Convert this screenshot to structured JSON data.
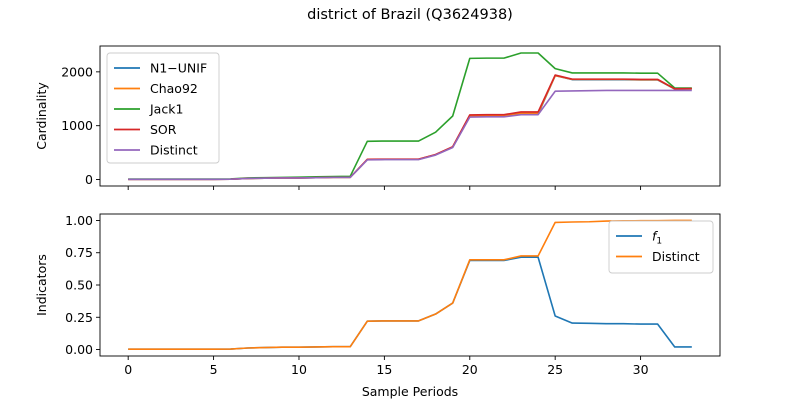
{
  "chart_data": {
    "type": "line",
    "title": "district of Brazil (Q3624938)",
    "xlabel": "Sample Periods",
    "x_ticks": [
      0,
      5,
      10,
      15,
      20,
      25,
      30
    ],
    "x_range": [
      -1.65,
      34.65
    ],
    "panels": [
      {
        "ylabel": "Cardinality",
        "ylim": [
          -120,
          2480
        ],
        "y_ticks": [
          0,
          1000,
          2000
        ],
        "show_x_tick_labels": false,
        "legend": "top-left",
        "series": [
          {
            "name": "N1−UNIF",
            "color": "#1f77b4",
            "x": [
              0,
              1,
              2,
              3,
              4,
              5,
              6,
              7,
              8,
              9,
              10,
              11,
              12,
              13,
              14,
              15,
              16,
              17,
              18,
              19,
              20,
              21,
              22,
              23,
              24,
              25,
              26,
              27,
              28,
              29,
              30,
              31,
              32,
              33
            ],
            "y": [
              5,
              5,
              5,
              5,
              5,
              5,
              6,
              20,
              25,
              30,
              30,
              35,
              40,
              40,
              370,
              375,
              375,
              375,
              460,
              600,
              1170,
              1175,
              1175,
              1215,
              1215,
              1930,
              1855,
              1855,
              1855,
              1855,
              1850,
              1850,
              1680,
              1685
            ]
          },
          {
            "name": "Chao92",
            "color": "#ff7f0e",
            "x": [
              0,
              1,
              2,
              3,
              4,
              5,
              6,
              7,
              8,
              9,
              10,
              11,
              12,
              13,
              14,
              15,
              16,
              17,
              18,
              19,
              20,
              21,
              22,
              23,
              24,
              25,
              26,
              27,
              28,
              29,
              30,
              31,
              32,
              33
            ],
            "y": [
              5,
              5,
              5,
              5,
              5,
              5,
              6,
              20,
              25,
              30,
              30,
              35,
              40,
              40,
              372,
              377,
              377,
              377,
              462,
              605,
              1180,
              1185,
              1185,
              1230,
              1230,
              1930,
              1860,
              1860,
              1860,
              1860,
              1855,
              1855,
              1682,
              1687
            ]
          },
          {
            "name": "Jack1",
            "color": "#2ca02c",
            "x": [
              0,
              1,
              2,
              3,
              4,
              5,
              6,
              7,
              8,
              9,
              10,
              11,
              12,
              13,
              14,
              15,
              16,
              17,
              18,
              19,
              20,
              21,
              22,
              23,
              24,
              25,
              26,
              27,
              28,
              29,
              30,
              31,
              32,
              33
            ],
            "y": [
              10,
              10,
              10,
              10,
              10,
              10,
              12,
              30,
              35,
              40,
              45,
              50,
              55,
              60,
              710,
              715,
              715,
              715,
              880,
              1180,
              2250,
              2255,
              2255,
              2350,
              2350,
              2060,
              1980,
              1980,
              1980,
              1980,
              1975,
              1975,
              1700,
              1700
            ]
          },
          {
            "name": "SOR",
            "color": "#d62728",
            "x": [
              0,
              1,
              2,
              3,
              4,
              5,
              6,
              7,
              8,
              9,
              10,
              11,
              12,
              13,
              14,
              15,
              16,
              17,
              18,
              19,
              20,
              21,
              22,
              23,
              24,
              25,
              26,
              27,
              28,
              29,
              30,
              31,
              32,
              33
            ],
            "y": [
              5,
              5,
              5,
              5,
              5,
              5,
              6,
              20,
              25,
              30,
              30,
              35,
              40,
              40,
              375,
              378,
              378,
              378,
              465,
              610,
              1200,
              1205,
              1205,
              1255,
              1255,
              1940,
              1865,
              1865,
              1865,
              1865,
              1860,
              1860,
              1685,
              1690
            ]
          },
          {
            "name": "Distinct",
            "color": "#9467bd",
            "x": [
              0,
              1,
              2,
              3,
              4,
              5,
              6,
              7,
              8,
              9,
              10,
              11,
              12,
              13,
              14,
              15,
              16,
              17,
              18,
              19,
              20,
              21,
              22,
              23,
              24,
              25,
              26,
              27,
              28,
              29,
              30,
              31,
              32,
              33
            ],
            "y": [
              5,
              5,
              5,
              5,
              5,
              5,
              6,
              20,
              25,
              30,
              30,
              35,
              40,
              40,
              365,
              370,
              370,
              370,
              455,
              595,
              1160,
              1165,
              1165,
              1205,
              1205,
              1640,
              1645,
              1650,
              1655,
              1655,
              1655,
              1655,
              1655,
              1655
            ]
          }
        ]
      },
      {
        "ylabel": "Indicators",
        "ylim": [
          -0.05,
          1.05
        ],
        "y_ticks": [
          0.0,
          0.25,
          0.5,
          0.75,
          1.0
        ],
        "y_tick_labels": [
          "0.00",
          "0.25",
          "0.50",
          "0.75",
          "1.00"
        ],
        "show_x_tick_labels": true,
        "legend": "upper-right",
        "series": [
          {
            "name": "f1",
            "display_name": "f",
            "subscript": "1",
            "color": "#1f77b4",
            "x": [
              0,
              1,
              2,
              3,
              4,
              5,
              6,
              7,
              8,
              9,
              10,
              11,
              12,
              13,
              14,
              15,
              16,
              17,
              18,
              19,
              20,
              21,
              22,
              23,
              24,
              25,
              26,
              27,
              28,
              29,
              30,
              31,
              32,
              33
            ],
            "y": [
              0.003,
              0.003,
              0.003,
              0.003,
              0.003,
              0.003,
              0.004,
              0.012,
              0.015,
              0.018,
              0.018,
              0.02,
              0.022,
              0.022,
              0.22,
              0.222,
              0.222,
              0.222,
              0.275,
              0.36,
              0.69,
              0.69,
              0.69,
              0.715,
              0.715,
              0.26,
              0.205,
              0.203,
              0.2,
              0.2,
              0.197,
              0.197,
              0.02,
              0.02
            ]
          },
          {
            "name": "Distinct",
            "display_name": "Distinct",
            "subscript": "",
            "color": "#ff7f0e",
            "x": [
              0,
              1,
              2,
              3,
              4,
              5,
              6,
              7,
              8,
              9,
              10,
              11,
              12,
              13,
              14,
              15,
              16,
              17,
              18,
              19,
              20,
              21,
              22,
              23,
              24,
              25,
              26,
              27,
              28,
              29,
              30,
              31,
              32,
              33
            ],
            "y": [
              0.003,
              0.003,
              0.003,
              0.003,
              0.003,
              0.003,
              0.004,
              0.012,
              0.015,
              0.018,
              0.018,
              0.02,
              0.022,
              0.022,
              0.22,
              0.222,
              0.222,
              0.222,
              0.275,
              0.36,
              0.695,
              0.695,
              0.695,
              0.725,
              0.725,
              0.985,
              0.988,
              0.99,
              0.995,
              0.997,
              0.998,
              0.998,
              1.0,
              1.0
            ]
          }
        ]
      }
    ]
  }
}
